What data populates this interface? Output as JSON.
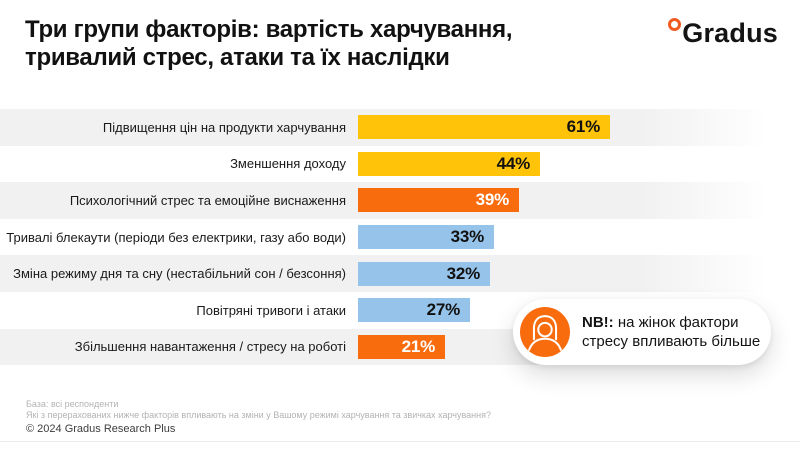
{
  "header": {
    "title": "Три групи факторів: вартість харчування, тривалий стрес, атаки та їх наслідки"
  },
  "logo": {
    "text": "Gradus",
    "dot_color": "#F15B22"
  },
  "chart_data": {
    "type": "bar",
    "orientation": "horizontal",
    "title": "Три групи факторів: вартість харчування, тривалий стрес, атаки та їх наслідки",
    "categories": [
      "Підвищення цін на продукти харчування",
      "Зменшення доходу",
      "Психологічний стрес та емоційне виснаження",
      "Тривалі блекаути (періоди без електрики, газу або води)",
      "Зміна режиму дня та сну (нестабільний сон / безсоння)",
      "Повітряні тривоги і атаки",
      "Збільшення навантаження / стресу на роботі"
    ],
    "values": [
      61,
      44,
      39,
      33,
      32,
      27,
      21
    ],
    "value_suffix": "%",
    "bar_colors": [
      "#FFC40A",
      "#FFC40A",
      "#F96C0E",
      "#95C3E9",
      "#95C3E9",
      "#95C3E9",
      "#F96C0E"
    ],
    "value_label_colors": [
      "#111111",
      "#111111",
      "#ffffff",
      "#111111",
      "#111111",
      "#111111",
      "#ffffff"
    ],
    "xlim": [
      0,
      100
    ],
    "grid": false,
    "legend": false,
    "row_stripe_color": "#F1F1F2"
  },
  "callout": {
    "nb": "NB!:",
    "text": " на жінок фактори стресу впливають більше",
    "icon": "woman-avatar-icon",
    "icon_bg": "#F96C0E"
  },
  "footer": {
    "base": "База: всі респонденти",
    "question": "Які з перерахованих нижче факторів впливають на зміни у Вашому режимі харчування та звичках харчування?",
    "copyright": "© 2024 Gradus Research Plus"
  },
  "colors": {
    "yellow": "#FFC40A",
    "orange": "#F96C0E",
    "blue": "#95C3E9"
  }
}
